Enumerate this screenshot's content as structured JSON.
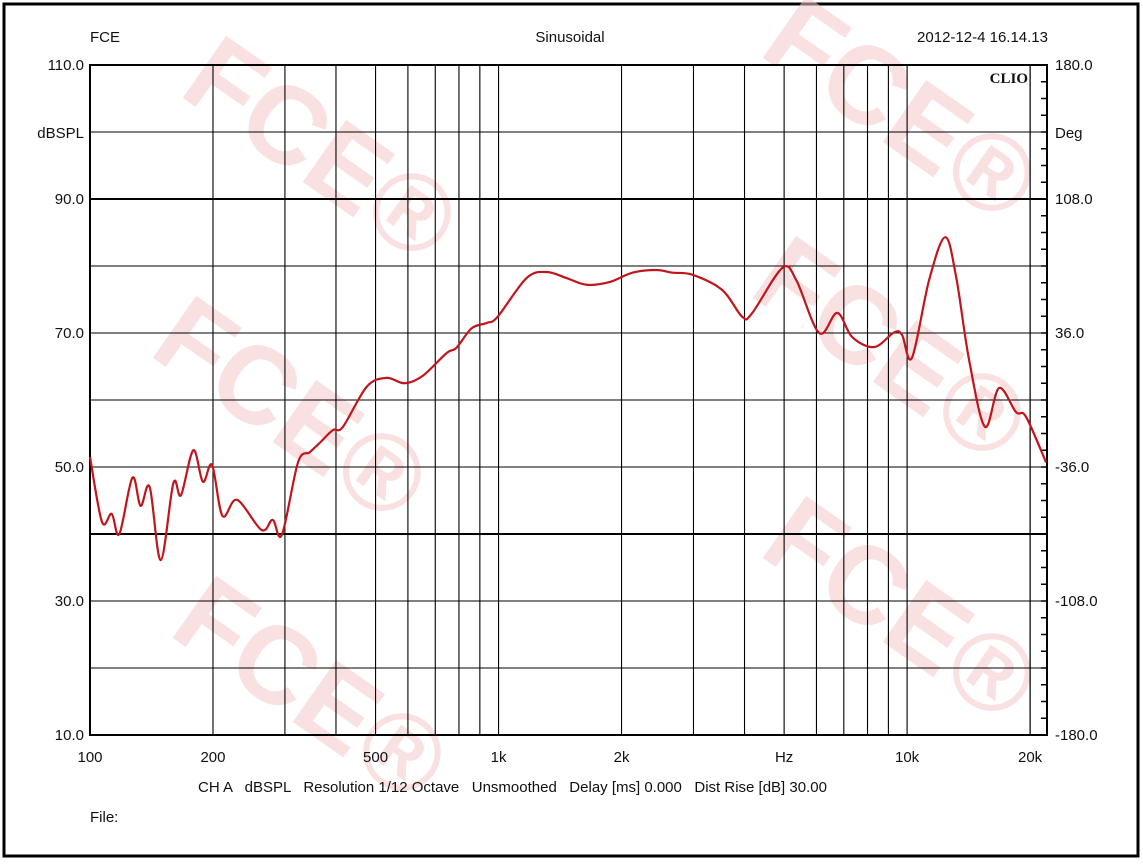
{
  "header": {
    "left": "FCE",
    "center": "Sinusoidal",
    "right": "2012-12-4 16.14.13"
  },
  "logo": "CLIO",
  "watermark": "FCE®",
  "footer": {
    "settings": "CH A   dBSPL   Resolution 1/12 Octave   Unsmoothed   Delay [ms] 0.000   Dist Rise [dB] 30.00",
    "file_label": "File:"
  },
  "colors": {
    "curve": "#c0161b",
    "grid": "#000000",
    "watermark": "#f7c9c9"
  },
  "chart_data": {
    "type": "line",
    "xscale": "log",
    "xlim": [
      100,
      22000
    ],
    "ylim": [
      10,
      110
    ],
    "y2lim": [
      -180,
      180
    ],
    "ylabel": "dBSPL",
    "y2label": "Deg",
    "xlabel": "Hz",
    "grid": true,
    "x_tick_labels": [
      {
        "value": 100,
        "label": "100"
      },
      {
        "value": 200,
        "label": "200"
      },
      {
        "value": 500,
        "label": "500"
      },
      {
        "value": 1000,
        "label": "1k"
      },
      {
        "value": 2000,
        "label": "2k"
      },
      {
        "value": 5000,
        "label": "Hz"
      },
      {
        "value": 10000,
        "label": "10k"
      },
      {
        "value": 20000,
        "label": "20k"
      }
    ],
    "y_tick_labels": [
      {
        "value": 110,
        "label": "110.0"
      },
      {
        "value": 90,
        "label": "90.0"
      },
      {
        "value": 70,
        "label": "70.0"
      },
      {
        "value": 50,
        "label": "50.0"
      },
      {
        "value": 30,
        "label": "30.0"
      },
      {
        "value": 10,
        "label": "10.0"
      }
    ],
    "y2_tick_labels": [
      "180.0",
      "108.0",
      "36.0",
      "-36.0",
      "-108.0",
      "-180.0"
    ],
    "series": [
      {
        "freq_hz": [
          100,
          107,
          113,
          118,
          127,
          133,
          140,
          149,
          160,
          167,
          179,
          189,
          199,
          211,
          229,
          263,
          280,
          295,
          323,
          345,
          365,
          393,
          416,
          476,
          532,
          589,
          652,
          746,
          789,
          859,
          935,
          994,
          1171,
          1311,
          1467,
          1642,
          1868,
          2127,
          2433,
          2663,
          2981,
          3530,
          3952,
          4179,
          4948,
          5354,
          6093,
          6744,
          7338,
          8308,
          9295,
          9720,
          10280,
          11320,
          12390,
          13180,
          14180,
          15510,
          16790,
          18470,
          19540,
          21880
        ],
        "spl_db": [
          51.5,
          41.8,
          43,
          40,
          48.4,
          44.2,
          47,
          36.1,
          47.6,
          45.8,
          52.5,
          47.8,
          50.3,
          42.7,
          45.1,
          40.6,
          42.1,
          39.9,
          50.7,
          52.2,
          53.6,
          55.5,
          56,
          62,
          63.3,
          62.5,
          63.6,
          67,
          67.8,
          70.7,
          71.5,
          72.4,
          78.2,
          79.1,
          78.2,
          77.2,
          77.6,
          79,
          79.4,
          79,
          78.7,
          76.4,
          72.4,
          73,
          79.7,
          77.9,
          70,
          73,
          69.4,
          67.9,
          70.1,
          69.7,
          66.3,
          77.9,
          84.3,
          78.4,
          66,
          56,
          61.8,
          58.2,
          57.5,
          50.7
        ]
      }
    ]
  }
}
